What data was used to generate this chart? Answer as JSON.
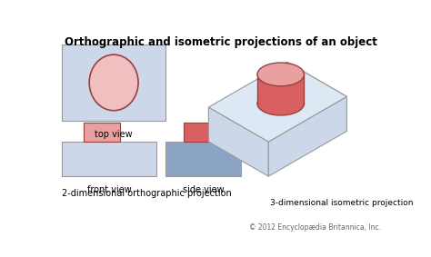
{
  "title": "Orthographic and isometric projections of an object",
  "title_fontsize": 8.5,
  "title_fontweight": "bold",
  "bg_color": "#ffffff",
  "label_top_view": "top view",
  "label_front_view": "front view",
  "label_side_view": "side view",
  "label_3d": "3-dimensional isometric projection",
  "label_2d": "2-dimensional orthographic projection",
  "copyright": "© 2012 Encyclopædia Britannica, Inc.",
  "color_box_lighter": "#ccd8ea",
  "color_box_medium": "#8ca4c4",
  "color_box_dark": "#7090b4",
  "color_top_face": "#dce8f4",
  "color_cylinder_side": "#d86060",
  "color_cylinder_top": "#eba0a0",
  "color_cylinder_light": "#f0c0c0",
  "color_rect_front": "#e8a0a0",
  "color_rect_side": "#cc5050",
  "color_ellipse_stroke": "#994040",
  "color_box_stroke": "#999999",
  "color_side_face": "#9ab0cc"
}
